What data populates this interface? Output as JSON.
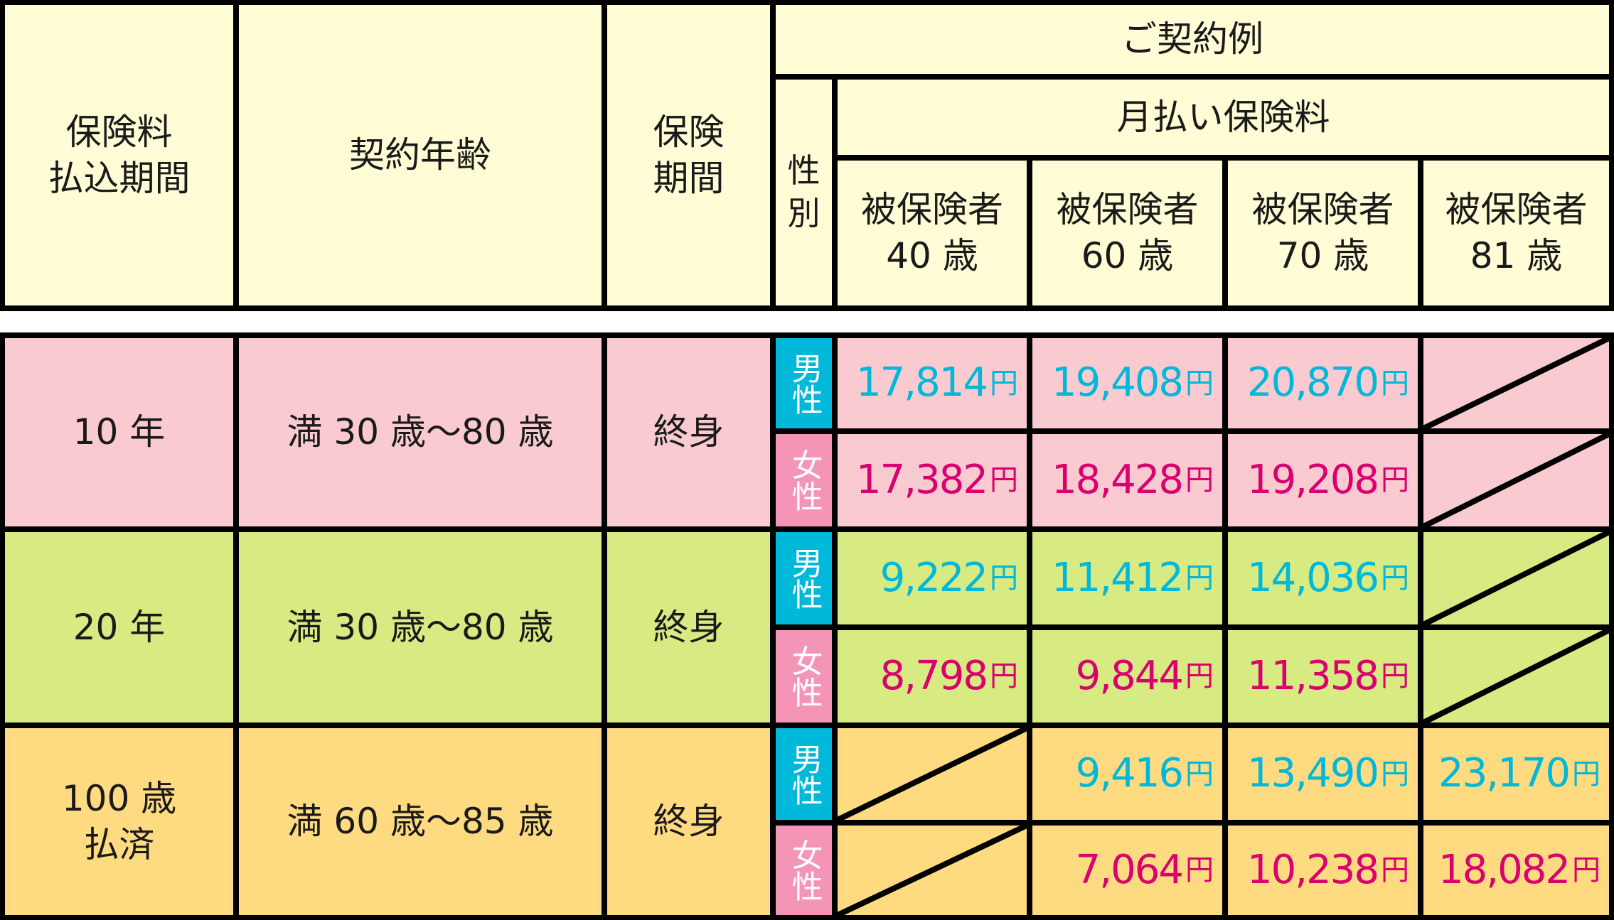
{
  "colors": {
    "header_bg": "#fffcd6",
    "row_10y": "#f9cbd0",
    "row_20y": "#d7eb82",
    "row_100": "#fedb80",
    "male_label_bg": "#00b8d9",
    "female_label_bg": "#f495b8",
    "male_text": "#00b8d9",
    "female_text": "#d9006f"
  },
  "header": {
    "payment_period": "保険料\n払込期間",
    "contract_age": "契約年齢",
    "coverage_period": "保険\n期間",
    "example": "ご契約例",
    "sex": "性別",
    "monthly_premium": "月払い保険料",
    "ages": [
      "被保険者\n40 歳",
      "被保険者\n60 歳",
      "被保険者\n70 歳",
      "被保険者\n81 歳"
    ]
  },
  "currency": "円",
  "rows": [
    {
      "period": "10 年",
      "age": "満 30 歳〜80 歳",
      "coverage": "終身",
      "male": {
        "label": "男性",
        "values": [
          "17,814",
          "19,408",
          "20,870",
          null
        ]
      },
      "female": {
        "label": "女性",
        "values": [
          "17,382",
          "18,428",
          "19,208",
          null
        ]
      }
    },
    {
      "period": "20 年",
      "age": "満 30 歳〜80 歳",
      "coverage": "終身",
      "male": {
        "label": "男性",
        "values": [
          "9,222",
          "11,412",
          "14,036",
          null
        ]
      },
      "female": {
        "label": "女性",
        "values": [
          "8,798",
          "9,844",
          "11,358",
          null
        ]
      }
    },
    {
      "period": "100 歳\n払済",
      "age": "満 60 歳〜85 歳",
      "coverage": "終身",
      "male": {
        "label": "男性",
        "values": [
          null,
          "9,416",
          "13,490",
          "23,170"
        ]
      },
      "female": {
        "label": "女性",
        "values": [
          null,
          "7,064",
          "10,238",
          "18,082"
        ]
      }
    }
  ]
}
